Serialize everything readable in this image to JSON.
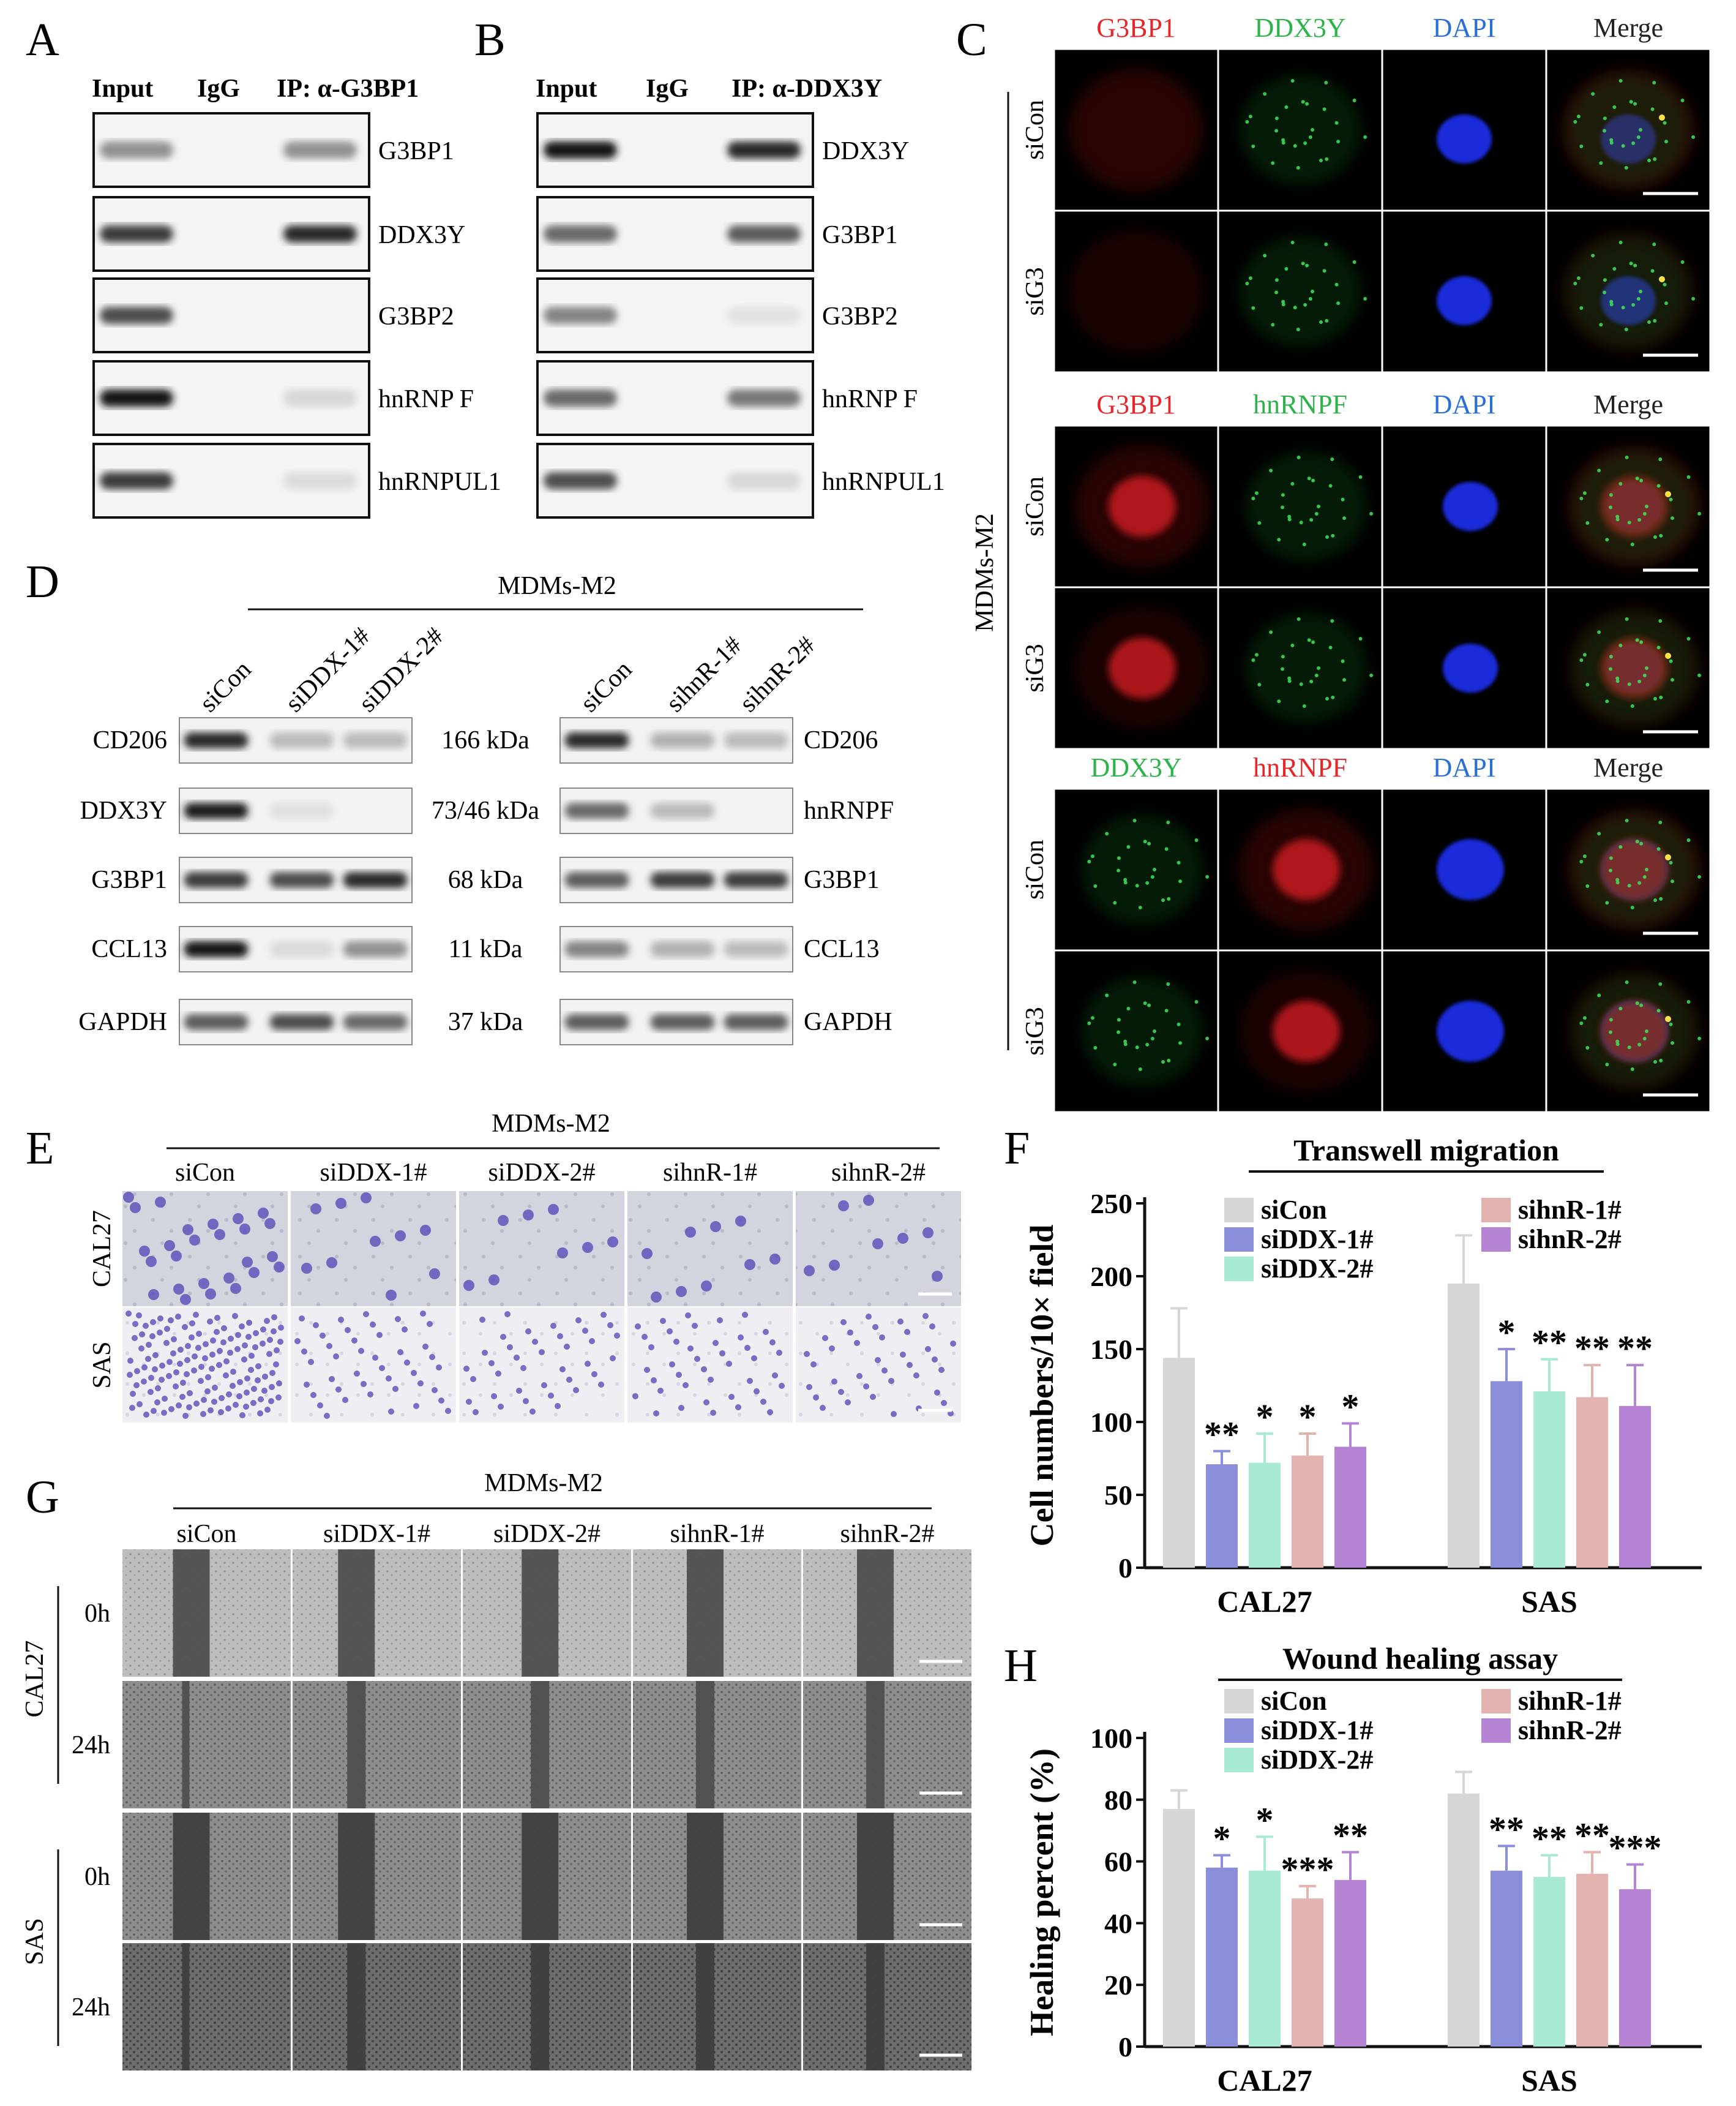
{
  "panel_labels": [
    "A",
    "B",
    "C",
    "D",
    "E",
    "F",
    "G",
    "H"
  ],
  "panelA": {
    "headers": [
      "Input",
      "IgG",
      "IP: α-G3BP1"
    ],
    "rows": [
      "G3BP1",
      "DDX3Y",
      "G3BP2",
      "hnRNP F",
      "hnRNPUL1"
    ]
  },
  "panelB": {
    "headers": [
      "Input",
      "IgG",
      "IP: α-DDX3Y"
    ],
    "rows": [
      "DDX3Y",
      "G3BP1",
      "G3BP2",
      "hnRNP F",
      "hnRNPUL1"
    ]
  },
  "panelC": {
    "side_label": "MDMs-M2",
    "blocks": [
      {
        "headers": [
          "G3BP1",
          "DDX3Y",
          "DAPI",
          "Merge"
        ],
        "header_colors": [
          "#e8262a",
          "#2db34a",
          "#2a6fd6",
          "#222222"
        ]
      },
      {
        "headers": [
          "G3BP1",
          "hnRNPF",
          "DAPI",
          "Merge"
        ],
        "header_colors": [
          "#e8262a",
          "#2db34a",
          "#2a6fd6",
          "#222222"
        ]
      },
      {
        "headers": [
          "DDX3Y",
          "hnRNPF",
          "DAPI",
          "Merge"
        ],
        "header_colors": [
          "#2db34a",
          "#e8262a",
          "#2a6fd6",
          "#222222"
        ]
      }
    ],
    "row_labels": [
      "siCon",
      "siG3"
    ]
  },
  "panelD": {
    "title": "MDMs-M2",
    "left_lanes": [
      "siCon",
      "siDDX-1#",
      "siDDX-2#"
    ],
    "right_lanes": [
      "siCon",
      "sihnR-1#",
      "sihnR-2#"
    ],
    "left_rows": [
      "CD206",
      "DDX3Y",
      "G3BP1",
      "CCL13",
      "GAPDH"
    ],
    "mw": [
      "166 kDa",
      "73/46 kDa",
      "68 kDa",
      "11 kDa",
      "37 kDa"
    ],
    "right_rows": [
      "CD206",
      "hnRNPF",
      "G3BP1",
      "CCL13",
      "GAPDH"
    ]
  },
  "panelE": {
    "title": "MDMs-M2",
    "columns": [
      "siCon",
      "siDDX-1#",
      "siDDX-2#",
      "sihnR-1#",
      "sihnR-2#"
    ],
    "rows": [
      "CAL27",
      "SAS"
    ]
  },
  "panelG": {
    "title": "MDMs-M2",
    "columns": [
      "siCon",
      "siDDX-1#",
      "siDDX-2#",
      "sihnR-1#",
      "sihnR-2#"
    ],
    "groups": [
      "CAL27",
      "SAS"
    ],
    "times": [
      "0h",
      "24h"
    ]
  },
  "colors": {
    "siCon": "#d6d6d6",
    "siDDX-1#": "#8b8fd9",
    "siDDX-2#": "#a9ead3",
    "sihnR-1#": "#e3b3b0",
    "sihnR-2#": "#b583d4"
  },
  "chart_data": [
    {
      "type": "bar",
      "title": "Transwell migration",
      "ylabel": "Cell numbers/10× field",
      "categories": [
        "CAL27",
        "SAS"
      ],
      "ylim": [
        0,
        250
      ],
      "yticks": [
        "0",
        "50",
        "100",
        "150",
        "200",
        "250"
      ],
      "series": [
        {
          "name": "siCon",
          "values": [
            144,
            195
          ],
          "errors": [
            34,
            33
          ],
          "stars": [
            "",
            ""
          ]
        },
        {
          "name": "siDDX-1#",
          "values": [
            71,
            128
          ],
          "errors": [
            9,
            22
          ],
          "stars": [
            "**",
            "*"
          ]
        },
        {
          "name": "siDDX-2#",
          "values": [
            72,
            121
          ],
          "errors": [
            20,
            22
          ],
          "stars": [
            "*",
            "**"
          ]
        },
        {
          "name": "sihnR-1#",
          "values": [
            77,
            117
          ],
          "errors": [
            15,
            22
          ],
          "stars": [
            "*",
            "**"
          ]
        },
        {
          "name": "sihnR-2#",
          "values": [
            83,
            111
          ],
          "errors": [
            16,
            28
          ],
          "stars": [
            "*",
            "**"
          ]
        }
      ],
      "legend": "top"
    },
    {
      "type": "bar",
      "title": "Wound healing assay",
      "ylabel": "Healing percent (%)",
      "categories": [
        "CAL27",
        "SAS"
      ],
      "ylim": [
        0,
        100
      ],
      "yticks": [
        "0",
        "20",
        "40",
        "60",
        "80",
        "100"
      ],
      "series": [
        {
          "name": "siCon",
          "values": [
            77,
            82
          ],
          "errors": [
            6,
            7
          ],
          "stars": [
            "",
            ""
          ]
        },
        {
          "name": "siDDX-1#",
          "values": [
            58,
            57
          ],
          "errors": [
            4,
            8
          ],
          "stars": [
            "*",
            "**"
          ]
        },
        {
          "name": "siDDX-2#",
          "values": [
            57,
            55
          ],
          "errors": [
            11,
            7
          ],
          "stars": [
            "*",
            "**"
          ]
        },
        {
          "name": "sihnR-1#",
          "values": [
            48,
            56
          ],
          "errors": [
            4,
            7
          ],
          "stars": [
            "***",
            "**"
          ]
        },
        {
          "name": "sihnR-2#",
          "values": [
            54,
            51
          ],
          "errors": [
            9,
            8
          ],
          "stars": [
            "**",
            "***"
          ]
        }
      ],
      "legend": "top"
    }
  ]
}
